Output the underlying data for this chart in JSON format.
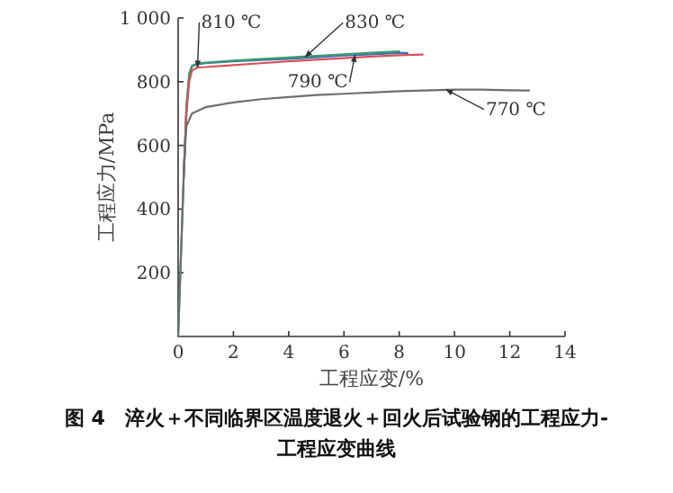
{
  "chart_data": {
    "type": "line",
    "title": "图 4　淬火＋不同临界区温度退火＋回火后试验钢的工程应力-工程应变曲线",
    "xlabel": "工程应变/%",
    "ylabel": "工程应力/MPa",
    "xlim": [
      0,
      14
    ],
    "ylim": [
      0,
      1000
    ],
    "xticks": [
      0,
      2,
      4,
      6,
      8,
      10,
      12,
      14
    ],
    "yticks": [
      200,
      400,
      600,
      800,
      {
        "value": 1000,
        "label": "1 000"
      }
    ],
    "grid": false,
    "marker": "none",
    "line_style": "solid",
    "series": [
      {
        "color": "#3a6fb5",
        "x": [
          0.2,
          0.3,
          0.4,
          0.5,
          0.7,
          1,
          2,
          3,
          4,
          5,
          6,
          7,
          8,
          8.3
        ],
        "values": [
          500,
          720,
          820,
          848,
          855,
          858,
          864,
          868,
          872,
          877,
          882,
          886,
          890,
          890
        ]
      },
      {
        "color": "#3a9a6e",
        "x": [
          0,
          0.1,
          0.2,
          0.3,
          0.4,
          0.5,
          0.7,
          1,
          2,
          3,
          4,
          5,
          6,
          7,
          8
        ],
        "values": [
          0,
          250,
          500,
          720,
          825,
          850,
          857,
          860,
          866,
          871,
          876,
          881,
          886,
          891,
          895
        ]
      },
      {
        "color": "#d9505a",
        "x": [
          0.2,
          0.3,
          0.4,
          0.5,
          0.7,
          1,
          2,
          3,
          4,
          5,
          6,
          7,
          8,
          8.85
        ],
        "values": [
          500,
          700,
          800,
          835,
          845,
          846,
          852,
          858,
          864,
          869,
          874,
          879,
          883,
          885
        ]
      },
      {
        "color": "#6e6e6e",
        "x": [
          0,
          0.1,
          0.2,
          0.25,
          0.3,
          0.5,
          1,
          2,
          3,
          4,
          5,
          6,
          8,
          10,
          11,
          12,
          12.7
        ],
        "values": [
          0,
          250,
          500,
          600,
          660,
          700,
          720,
          735,
          745,
          752,
          758,
          762,
          770,
          775,
          775,
          773,
          772
        ]
      }
    ],
    "annotations": [
      {
        "text": "810 ℃",
        "x": 0.7,
        "y": 845
      },
      {
        "text": "830 ℃",
        "x": 4.6,
        "y": 878
      },
      {
        "text": "790 ℃",
        "x": 6.4,
        "y": 883
      },
      {
        "text": "770 ℃",
        "x": 9.7,
        "y": 775
      }
    ]
  }
}
